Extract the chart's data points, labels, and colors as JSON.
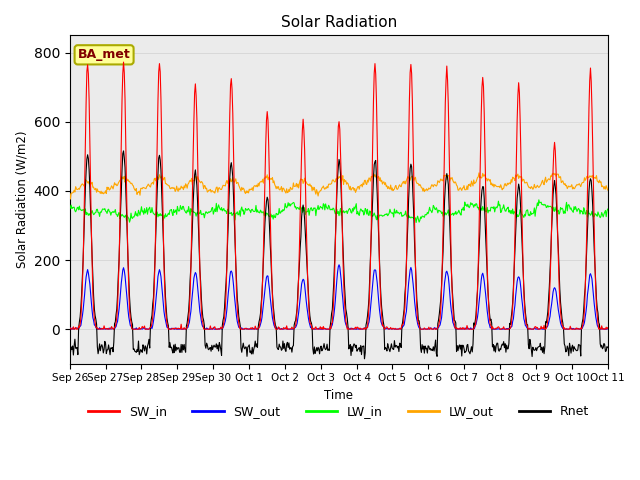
{
  "title": "Solar Radiation",
  "ylabel": "Solar Radiation (W/m2)",
  "xlabel": "Time",
  "ylim": [
    -100,
    850
  ],
  "annotation": "BA_met",
  "colors": {
    "SW_in": "#FF0000",
    "SW_out": "#0000FF",
    "LW_in": "#00FF00",
    "LW_out": "#FFA500",
    "Rnet": "#000000"
  },
  "tick_labels": [
    "Sep 26",
    "Sep 27",
    "Sep 28",
    "Sep 29",
    "Sep 30",
    "Oct 1",
    "Oct 2",
    "Oct 3",
    "Oct 4",
    "Oct 5",
    "Oct 6",
    "Oct 7",
    "Oct 8",
    "Oct 9",
    "Oct 10",
    "Oct 11"
  ],
  "sw_in_peaks": [
    770,
    770,
    775,
    705,
    730,
    625,
    600,
    605,
    770,
    770,
    755,
    730,
    710,
    540,
    750
  ],
  "sw_out_peaks": [
    170,
    175,
    170,
    165,
    170,
    155,
    145,
    185,
    175,
    175,
    170,
    160,
    155,
    120,
    160
  ],
  "lw_in_base": 335,
  "lw_out_base": 395,
  "rnet_peaks": [
    510,
    515,
    505,
    460,
    480,
    380,
    355,
    490,
    490,
    475,
    455,
    415,
    420,
    430,
    445
  ],
  "rnet_night": -55,
  "background_color": "#FFFFFF",
  "grid_color": "#D8D8D8",
  "num_days": 15,
  "steps_per_hour": 2
}
